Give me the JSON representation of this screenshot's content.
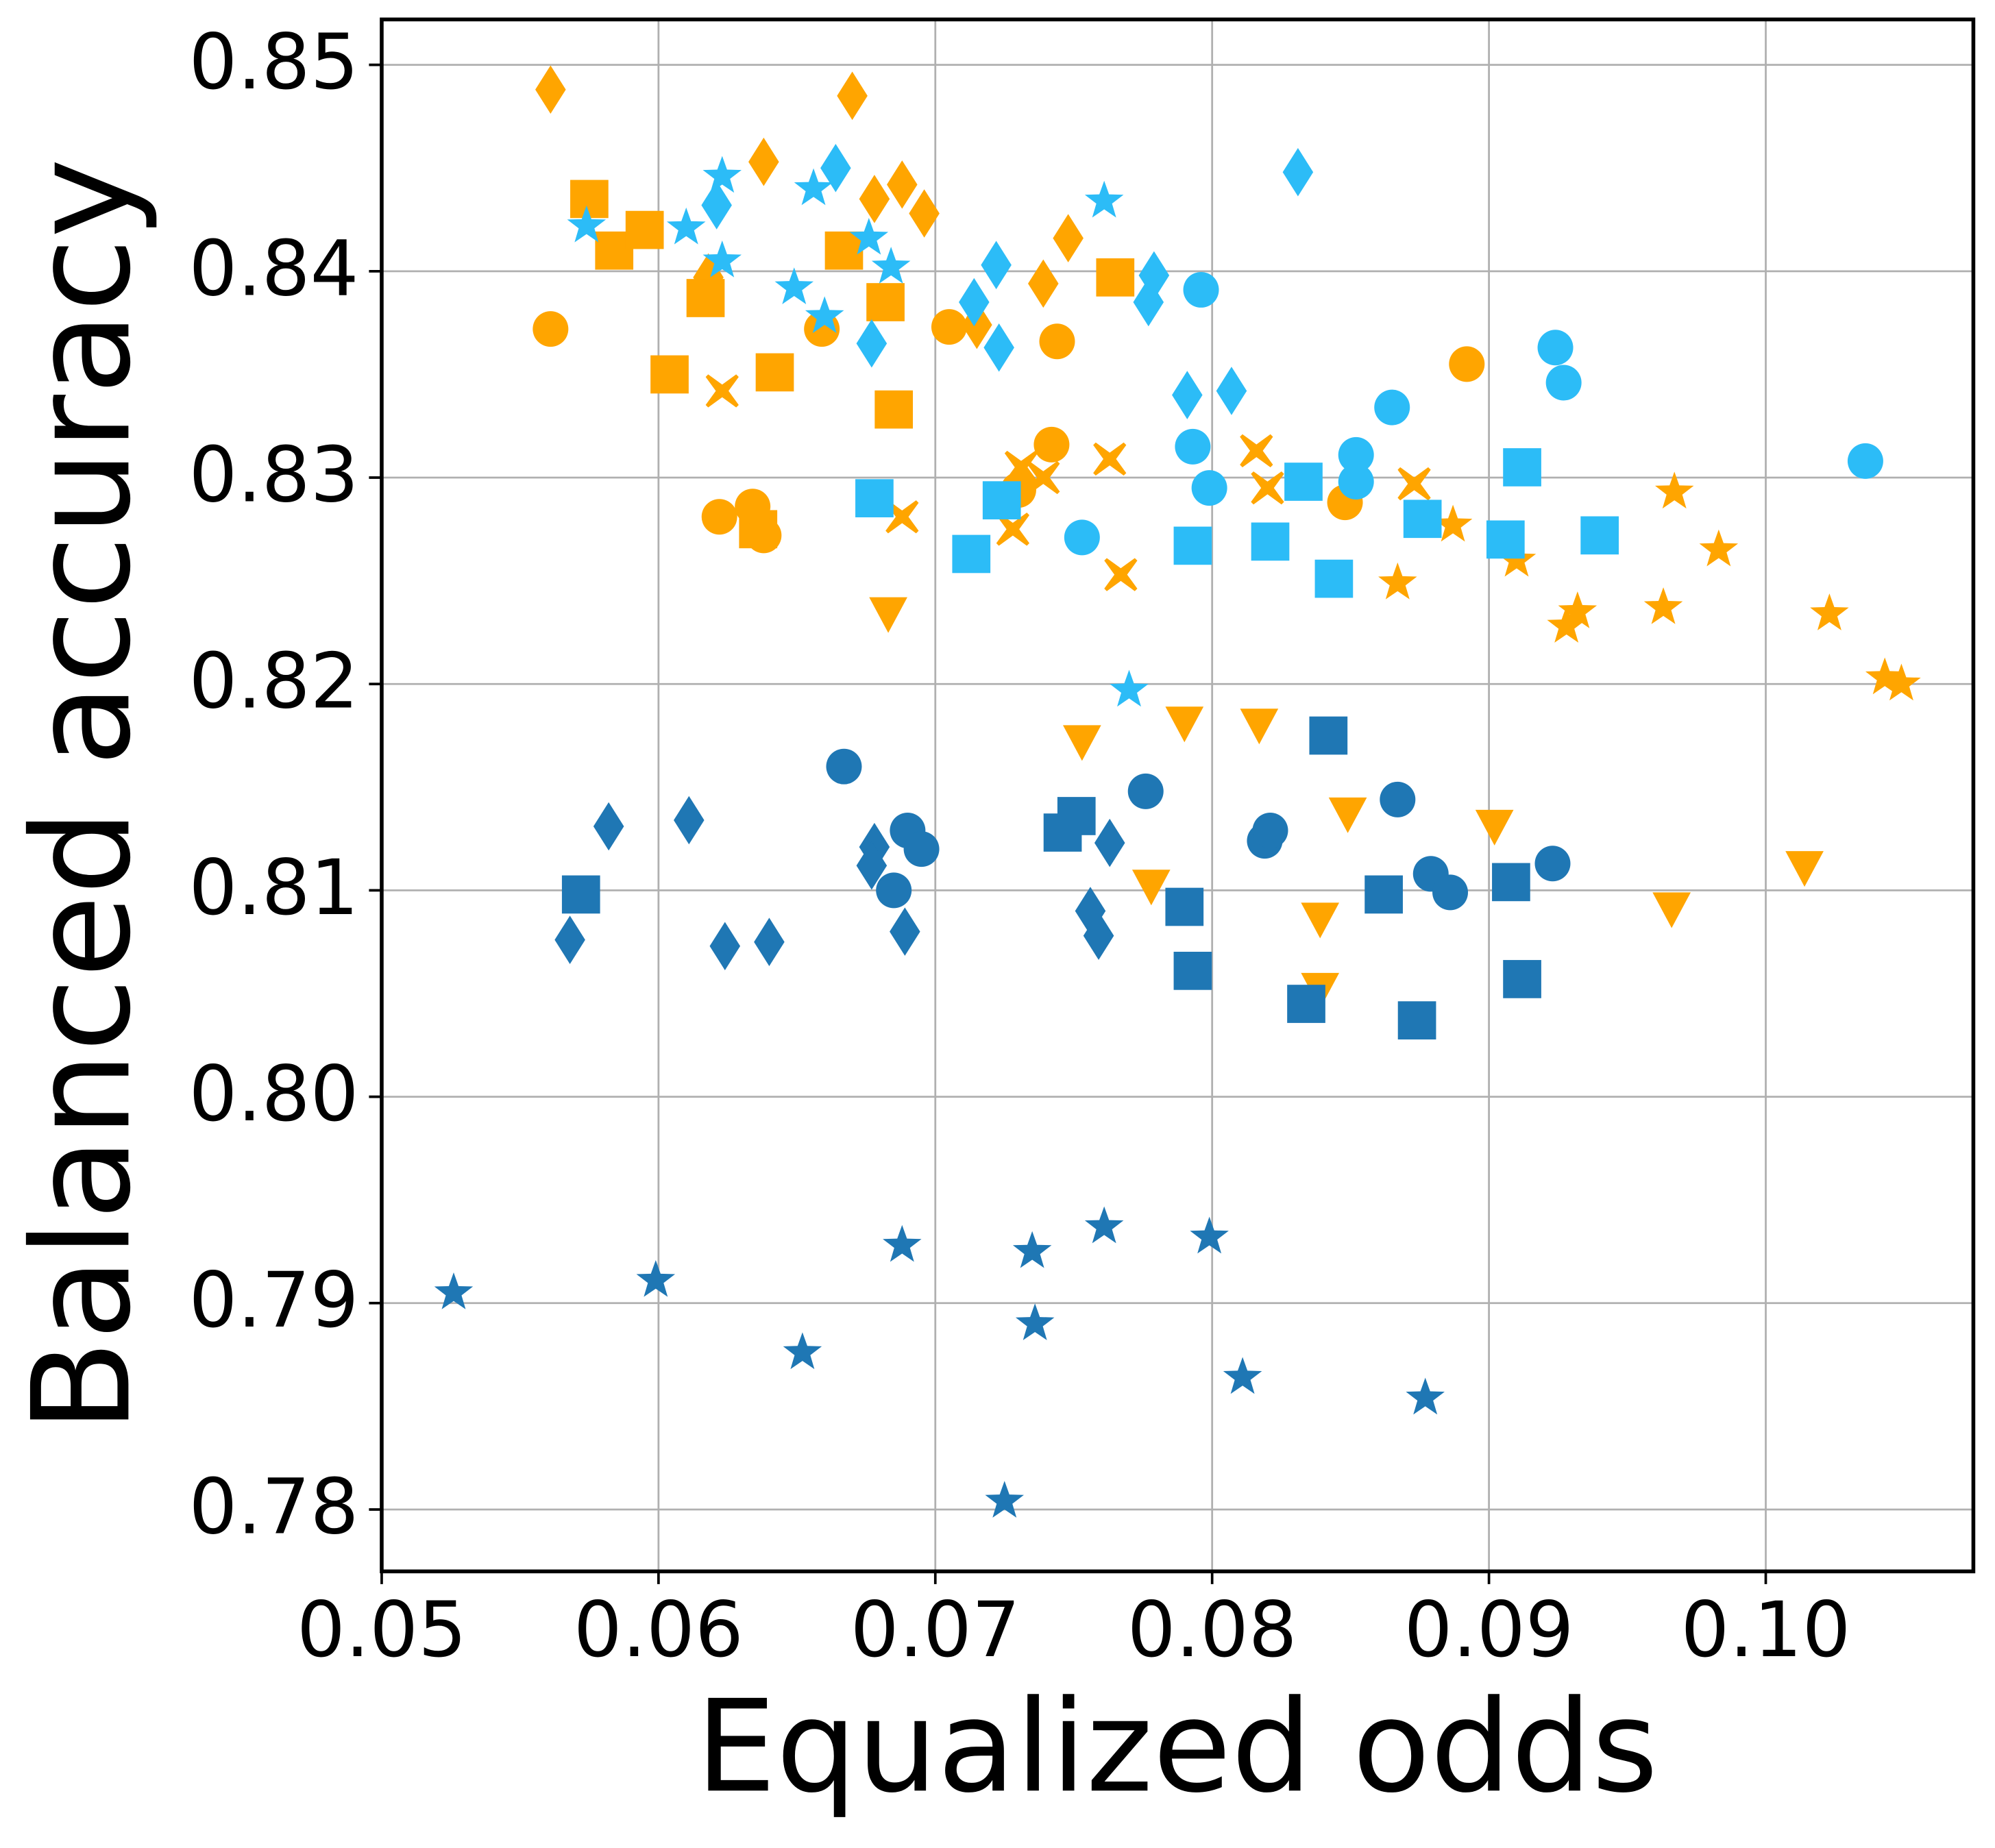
{
  "chart_data": {
    "type": "scatter",
    "xlabel": "Equalized odds",
    "ylabel": "Balanced accuracy",
    "xlim": [
      0.05,
      0.1075
    ],
    "ylim": [
      0.777,
      0.8522
    ],
    "grid": true,
    "xticks": [
      0.05,
      0.06,
      0.07,
      0.08,
      0.09,
      {
        "value": 0.1,
        "label": "0.10"
      }
    ],
    "yticks": [
      0.78,
      0.79,
      {
        "value": 0.8,
        "label": "0.80"
      },
      0.81,
      0.82,
      0.83,
      0.84,
      0.85
    ],
    "series": [
      {
        "color": "#ffa500",
        "marker": "diamond",
        "x": [
          0.0561,
          0.0638,
          0.067,
          0.0678,
          0.0688,
          0.0696,
          0.0715,
          0.0739,
          0.0748,
          0.0618
        ],
        "values": [
          0.8488,
          0.8453,
          0.8485,
          0.8435,
          0.8442,
          0.8428,
          0.8374,
          0.8394,
          0.8416,
          0.8397
        ]
      },
      {
        "color": "#ffa500",
        "marker": "square",
        "x": [
          0.0575,
          0.0584,
          0.0595,
          0.0604,
          0.0617,
          0.0636,
          0.0642,
          0.0667,
          0.0682,
          0.0685,
          0.0765
        ],
        "values": [
          0.8435,
          0.841,
          0.842,
          0.835,
          0.8387,
          0.8275,
          0.8351,
          0.841,
          0.8385,
          0.8333,
          0.8397
        ]
      },
      {
        "color": "#ffa500",
        "marker": "circle",
        "x": [
          0.0561,
          0.0622,
          0.0634,
          0.0638,
          0.0659,
          0.0705,
          0.0744,
          0.073,
          0.0742,
          0.0848,
          0.0892
        ],
        "values": [
          0.8372,
          0.8281,
          0.8286,
          0.8272,
          0.8372,
          0.8373,
          0.8366,
          0.8294,
          0.8316,
          0.8288,
          0.8355
        ]
      },
      {
        "color": "#ffa500",
        "marker": "x",
        "x": [
          0.0623,
          0.0688,
          0.0728,
          0.0731,
          0.0739,
          0.0763,
          0.0767,
          0.0816,
          0.082,
          0.0873
        ],
        "values": [
          0.8342,
          0.8281,
          0.8275,
          0.8305,
          0.83,
          0.8309,
          0.8253,
          0.8313,
          0.8295,
          0.8297
        ]
      },
      {
        "color": "#ffa500",
        "marker": "star",
        "x": [
          0.0867,
          0.0887,
          0.091,
          0.0928,
          0.0932,
          0.0963,
          0.0967,
          0.0983,
          0.1023,
          0.1043,
          0.1049
        ],
        "values": [
          0.8249,
          0.8277,
          0.826,
          0.8228,
          0.8235,
          0.8237,
          0.8293,
          0.8265,
          0.8234,
          0.8203,
          0.82
        ]
      },
      {
        "color": "#ffa500",
        "marker": "triangle-down",
        "x": [
          0.0683,
          0.0753,
          0.0778,
          0.079,
          0.0817,
          0.0839,
          0.0839,
          0.0849,
          0.0902,
          0.0966,
          0.1014
        ],
        "values": [
          0.8234,
          0.8172,
          0.8102,
          0.8181,
          0.818,
          0.8086,
          0.8052,
          0.8137,
          0.8131,
          0.8091,
          0.8111
        ]
      },
      {
        "color": "#2cbcf7",
        "marker": "star",
        "x": [
          0.0574,
          0.061,
          0.0623,
          0.0623,
          0.0649,
          0.0656,
          0.066,
          0.0676,
          0.0684,
          0.0761,
          0.077
        ],
        "values": [
          0.8422,
          0.8421,
          0.8446,
          0.8405,
          0.8392,
          0.844,
          0.8378,
          0.8416,
          0.8402,
          0.8434,
          0.8197
        ]
      },
      {
        "color": "#2cbcf7",
        "marker": "diamond",
        "x": [
          0.0621,
          0.0664,
          0.0677,
          0.0722,
          0.0714,
          0.0723,
          0.0779,
          0.0777,
          0.0791,
          0.0807,
          0.0831
        ],
        "values": [
          0.8432,
          0.845,
          0.8365,
          0.8403,
          0.8385,
          0.8363,
          0.8398,
          0.8385,
          0.834,
          0.8342,
          0.8448
        ]
      },
      {
        "color": "#2cbcf7",
        "marker": "circle",
        "x": [
          0.0796,
          0.0793,
          0.0799,
          0.0753,
          0.0852,
          0.0852,
          0.0865,
          0.0924,
          0.0927,
          0.1036
        ],
        "values": [
          0.8391,
          0.8315,
          0.8295,
          0.8271,
          0.8311,
          0.8298,
          0.8334,
          0.8363,
          0.8346,
          0.8308
        ]
      },
      {
        "color": "#2cbcf7",
        "marker": "square",
        "x": [
          0.0678,
          0.0713,
          0.0724,
          0.0793,
          0.0821,
          0.0833,
          0.0844,
          0.0876,
          0.0906,
          0.0912,
          0.094
        ],
        "values": [
          0.829,
          0.8263,
          0.8289,
          0.8267,
          0.8269,
          0.8298,
          0.8251,
          0.828,
          0.827,
          0.8305,
          0.8272
        ]
      },
      {
        "color": "#1f77b4",
        "marker": "diamond",
        "x": [
          0.0568,
          0.0582,
          0.0611,
          0.0624,
          0.064,
          0.0678,
          0.0677,
          0.0689,
          0.0756,
          0.0759,
          0.0763
        ],
        "values": [
          0.8076,
          0.8131,
          0.8134,
          0.8073,
          0.8075,
          0.8121,
          0.8112,
          0.808,
          0.809,
          0.8078,
          0.8123
        ]
      },
      {
        "color": "#1f77b4",
        "marker": "circle",
        "x": [
          0.0667,
          0.0685,
          0.069,
          0.0695,
          0.0776,
          0.0819,
          0.0821,
          0.0867,
          0.0879,
          0.0886,
          0.0923
        ],
        "values": [
          0.816,
          0.81,
          0.8129,
          0.812,
          0.8148,
          0.8124,
          0.8129,
          0.8144,
          0.8108,
          0.8099,
          0.8113
        ]
      },
      {
        "color": "#1f77b4",
        "marker": "square",
        "x": [
          0.0572,
          0.0746,
          0.0751,
          0.079,
          0.0793,
          0.0834,
          0.0842,
          0.0862,
          0.0874,
          0.0908,
          0.0912
        ],
        "values": [
          0.8098,
          0.8128,
          0.8136,
          0.8092,
          0.8061,
          0.8045,
          0.8175,
          0.8098,
          0.8037,
          0.8104,
          0.8057
        ]
      },
      {
        "color": "#1f77b4",
        "marker": "star",
        "x": [
          0.0526,
          0.0599,
          0.0652,
          0.0688,
          0.0725,
          0.0735,
          0.0736,
          0.0761,
          0.0799,
          0.0811,
          0.0877
        ],
        "values": [
          0.7905,
          0.7911,
          0.7876,
          0.7928,
          0.7804,
          0.7925,
          0.789,
          0.7937,
          0.7932,
          0.7864,
          0.7854
        ]
      }
    ]
  }
}
